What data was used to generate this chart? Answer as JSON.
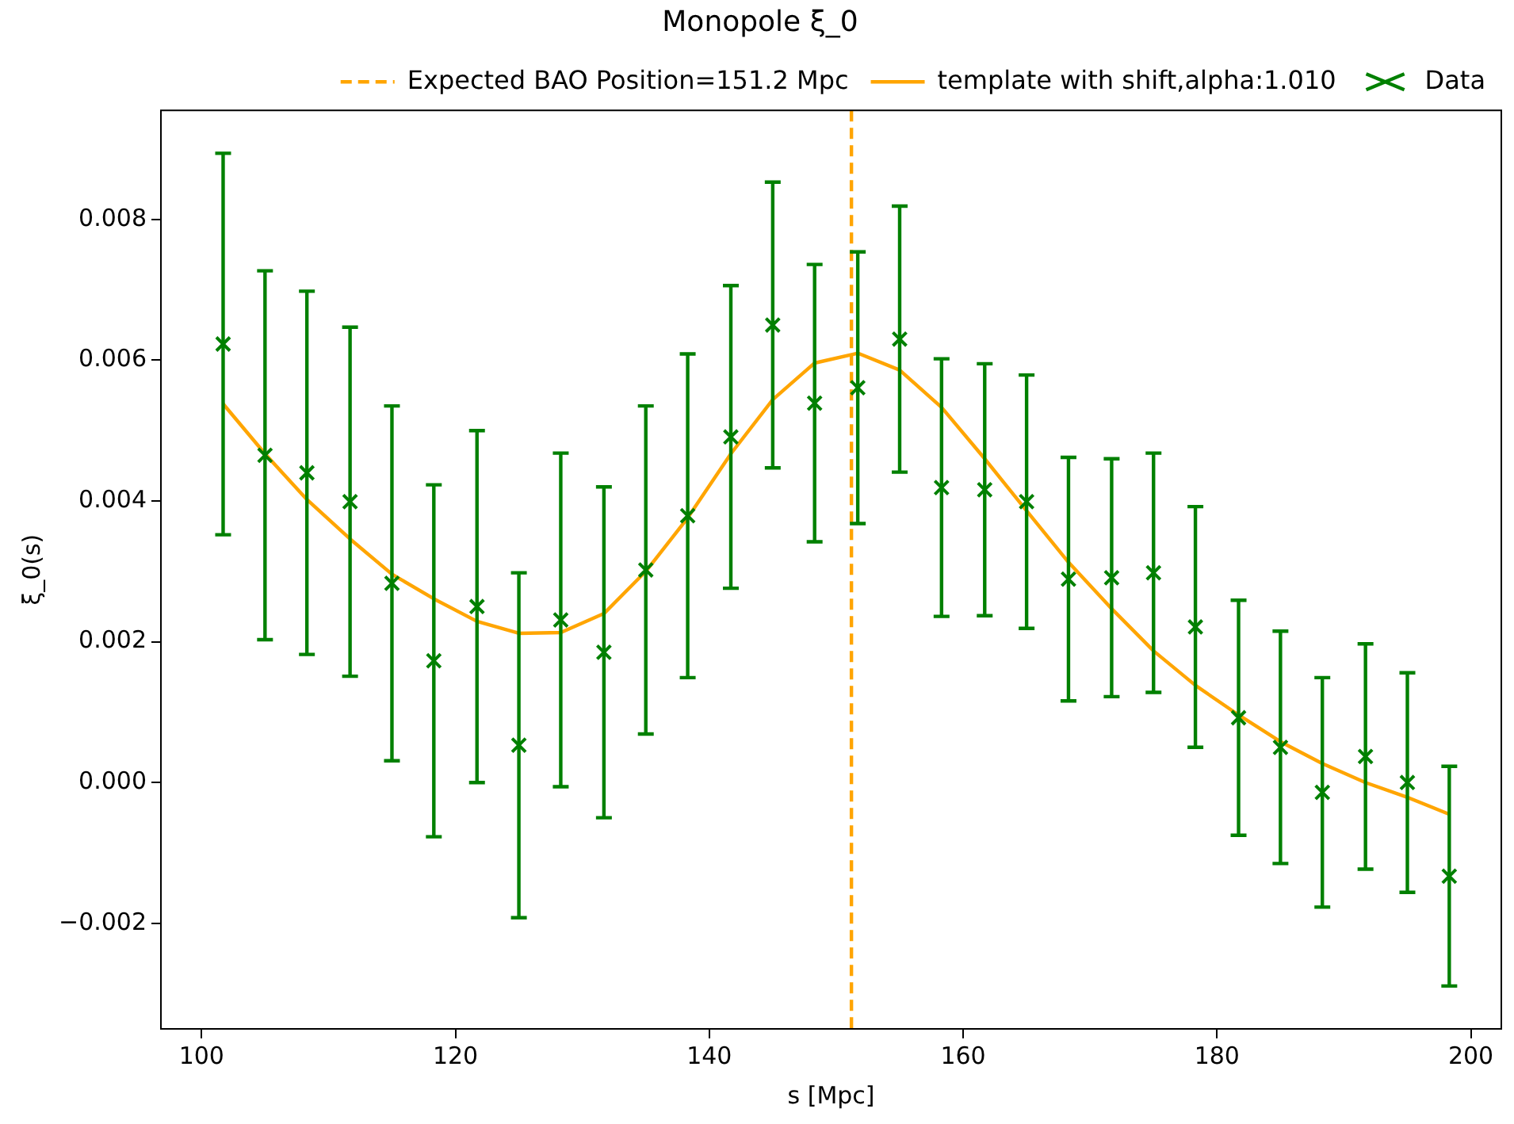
{
  "chart_data": {
    "type": "line",
    "title": "Monopole ξ_0",
    "xlabel": "s [Mpc]",
    "ylabel": "ξ_0(s)",
    "x": [
      101.7,
      105.0,
      108.3,
      111.7,
      115.0,
      118.3,
      121.7,
      125.0,
      128.3,
      131.7,
      135.0,
      138.3,
      141.7,
      145.0,
      148.3,
      151.7,
      155.0,
      158.3,
      161.7,
      165.0,
      168.3,
      171.7,
      175.0,
      178.3,
      181.7,
      185.0,
      188.3,
      191.7,
      195.0,
      198.3
    ],
    "series": [
      {
        "name": "template with shift,alpha:1.010",
        "type": "line",
        "color": "#ffa500",
        "marker": "none",
        "line_style": "solid",
        "values": [
          0.00538,
          0.00467,
          0.00402,
          0.00346,
          0.00296,
          0.00261,
          0.00229,
          0.00212,
          0.00213,
          0.0024,
          0.003,
          0.00376,
          0.00467,
          0.00544,
          0.00596,
          0.0061,
          0.00586,
          0.00533,
          0.0046,
          0.00386,
          0.00313,
          0.00247,
          0.00187,
          0.00138,
          0.00096,
          0.00058,
          0.00027,
          0,
          -0.00021,
          -0.00045
        ]
      },
      {
        "name": "Data",
        "type": "scatter",
        "color": "#008000",
        "marker": "cross",
        "values": [
          0.00623,
          0.00465,
          0.0044,
          0.00399,
          0.00283,
          0.00173,
          0.0025,
          0.00053,
          0.00231,
          0.00185,
          0.00302,
          0.00379,
          0.00491,
          0.0065,
          0.00539,
          0.00561,
          0.0063,
          0.00419,
          0.00416,
          0.00399,
          0.00289,
          0.00291,
          0.00298,
          0.00221,
          0.00092,
          0.0005,
          -0.00014,
          0.00037,
          0,
          -0.00133
        ],
        "errors": [
          0.00271,
          0.00262,
          0.00258,
          0.00248,
          0.00252,
          0.0025,
          0.0025,
          0.00245,
          0.00237,
          0.00235,
          0.00233,
          0.0023,
          0.00215,
          0.00203,
          0.00197,
          0.00193,
          0.00189,
          0.00183,
          0.00179,
          0.0018,
          0.00173,
          0.00169,
          0.0017,
          0.00171,
          0.00167,
          0.00165,
          0.00163,
          0.0016,
          0.00156,
          0.00156
        ]
      }
    ],
    "ref_lines": [
      {
        "axis": "x",
        "value": 151.2,
        "label": "Expected BAO Position=151.2 Mpc",
        "color": "#ffa500",
        "line_style": "dashed"
      }
    ],
    "xlim": [
      96.8,
      202.4
    ],
    "xticks": [
      100,
      120,
      140,
      160,
      180,
      200
    ],
    "ylim": [
      -0.0035,
      0.00955
    ],
    "yticks": [
      {
        "value": -0.002,
        "label": "−0.002"
      },
      {
        "value": 0,
        "label": "0.000"
      },
      0.002,
      0.004,
      0.006,
      0.008
    ],
    "grid": false,
    "legend": "top right"
  }
}
